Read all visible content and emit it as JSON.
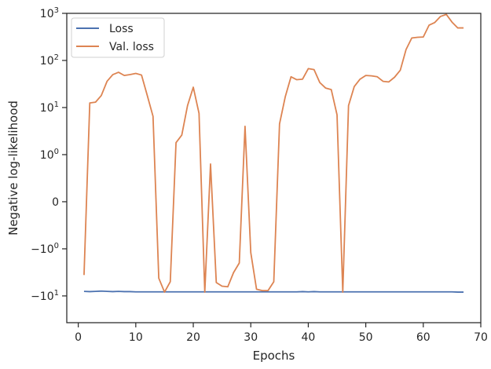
{
  "chart_data": {
    "type": "line",
    "xlabel": "Epochs",
    "ylabel": "Negative log-likelihood",
    "yscale": "symlog",
    "xlim": [
      -2,
      70
    ],
    "ylim": [
      -37,
      1000
    ],
    "x_ticks": [
      {
        "value": 0,
        "label": "0"
      },
      {
        "value": 10,
        "label": "10"
      },
      {
        "value": 20,
        "label": "20"
      },
      {
        "value": 30,
        "label": "30"
      },
      {
        "value": 40,
        "label": "40"
      },
      {
        "value": 50,
        "label": "50"
      },
      {
        "value": 60,
        "label": "60"
      },
      {
        "value": 70,
        "label": "70"
      }
    ],
    "y_ticks": [
      {
        "value": -10,
        "label": "−10",
        "exp": "1"
      },
      {
        "value": -1,
        "label": "−10",
        "exp": "0"
      },
      {
        "value": 0,
        "label": "0",
        "exp": ""
      },
      {
        "value": 1,
        "label": "10",
        "exp": "0"
      },
      {
        "value": 10,
        "label": "10",
        "exp": "1"
      },
      {
        "value": 100,
        "label": "10",
        "exp": "2"
      },
      {
        "value": 1000,
        "label": "10",
        "exp": "3"
      }
    ],
    "legend_position": "top-left",
    "grid": false,
    "series": [
      {
        "name": "Loss",
        "color": "#4c72b0",
        "x": [
          1,
          2,
          3,
          4,
          5,
          6,
          7,
          8,
          9,
          10,
          11,
          12,
          13,
          14,
          15,
          16,
          17,
          18,
          19,
          20,
          21,
          22,
          23,
          24,
          25,
          26,
          27,
          28,
          29,
          30,
          31,
          32,
          33,
          34,
          35,
          36,
          37,
          38,
          39,
          40,
          41,
          42,
          43,
          44,
          45,
          46,
          47,
          48,
          49,
          50,
          51,
          52,
          53,
          54,
          55,
          56,
          57,
          58,
          59,
          60,
          61,
          62,
          63,
          64,
          65,
          66,
          67
        ],
        "y": [
          -8.0,
          -8.1,
          -8.0,
          -7.9,
          -8.0,
          -8.1,
          -8.0,
          -8.1,
          -8.1,
          -8.2,
          -8.2,
          -8.2,
          -8.2,
          -8.2,
          -8.2,
          -8.2,
          -8.2,
          -8.2,
          -8.2,
          -8.2,
          -8.2,
          -8.2,
          -8.2,
          -8.2,
          -8.2,
          -8.2,
          -8.2,
          -8.2,
          -8.2,
          -8.2,
          -8.2,
          -8.2,
          -8.2,
          -8.2,
          -8.2,
          -8.2,
          -8.2,
          -8.2,
          -8.1,
          -8.2,
          -8.1,
          -8.2,
          -8.2,
          -8.2,
          -8.2,
          -8.2,
          -8.2,
          -8.2,
          -8.2,
          -8.2,
          -8.2,
          -8.2,
          -8.2,
          -8.2,
          -8.2,
          -8.2,
          -8.2,
          -8.2,
          -8.2,
          -8.2,
          -8.2,
          -8.2,
          -8.2,
          -8.2,
          -8.2,
          -8.3,
          -8.3
        ]
      },
      {
        "name": "Val. loss",
        "color": "#dd8452",
        "x": [
          1,
          2,
          3,
          4,
          5,
          6,
          7,
          8,
          9,
          10,
          11,
          12,
          13,
          14,
          15,
          16,
          17,
          18,
          19,
          20,
          21,
          22,
          23,
          24,
          25,
          26,
          27,
          28,
          29,
          30,
          31,
          32,
          33,
          34,
          35,
          36,
          37,
          38,
          39,
          40,
          41,
          42,
          43,
          44,
          45,
          46,
          47,
          48,
          49,
          50,
          51,
          52,
          53,
          54,
          55,
          56,
          57,
          58,
          59,
          60,
          61,
          62,
          63,
          64,
          65,
          66,
          67
        ],
        "y": [
          -3.6,
          12.5,
          13,
          18,
          36,
          50,
          56,
          48,
          50,
          53,
          49,
          18,
          6.5,
          -4.2,
          -8.3,
          -5,
          1.8,
          2.6,
          11,
          27,
          7.5,
          -8.3,
          0.8,
          -5.2,
          -6.2,
          -6.4,
          -3.2,
          -2,
          4,
          -1.2,
          -7.2,
          -7.7,
          -7.7,
          -5,
          4.5,
          17,
          45,
          39,
          40,
          67,
          64,
          34,
          26,
          24,
          7,
          -8.3,
          11,
          28,
          40,
          48,
          47,
          45,
          36,
          35,
          44,
          62,
          170,
          300,
          310,
          315,
          560,
          640,
          860,
          950,
          650,
          490,
          490
        ]
      }
    ]
  }
}
